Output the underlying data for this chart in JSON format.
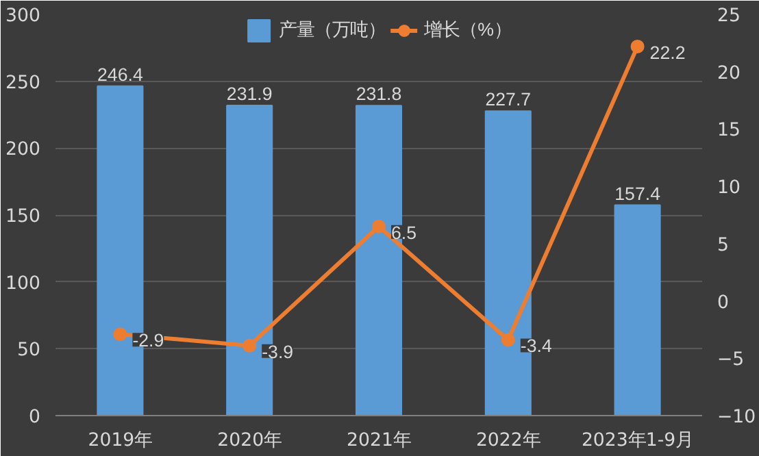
{
  "chart_data": {
    "type": "bar",
    "categories": [
      "2019年",
      "2020年",
      "2021年",
      "2022年",
      "2023年1-9月"
    ],
    "series": [
      {
        "name": "产量（万吨）",
        "color": "#5b9bd5",
        "values": [
          246.4,
          231.9,
          231.8,
          227.7,
          157.4
        ]
      },
      {
        "name": "增长（%）",
        "type": "line",
        "axis": "y2",
        "color": "#ed7d31",
        "values": [
          -2.9,
          -3.9,
          6.5,
          -3.4,
          22.2
        ]
      }
    ],
    "ylim": [
      0,
      300
    ],
    "yticks": [
      0,
      50,
      100,
      150,
      200,
      250,
      300
    ],
    "y2lim": [
      -10,
      25
    ],
    "y2ticks": [
      -10,
      -5,
      0,
      5,
      10,
      15,
      20,
      25
    ],
    "data_labels": true,
    "grid": "y",
    "legend": "top",
    "marker": "circle",
    "line_style": "solid"
  }
}
